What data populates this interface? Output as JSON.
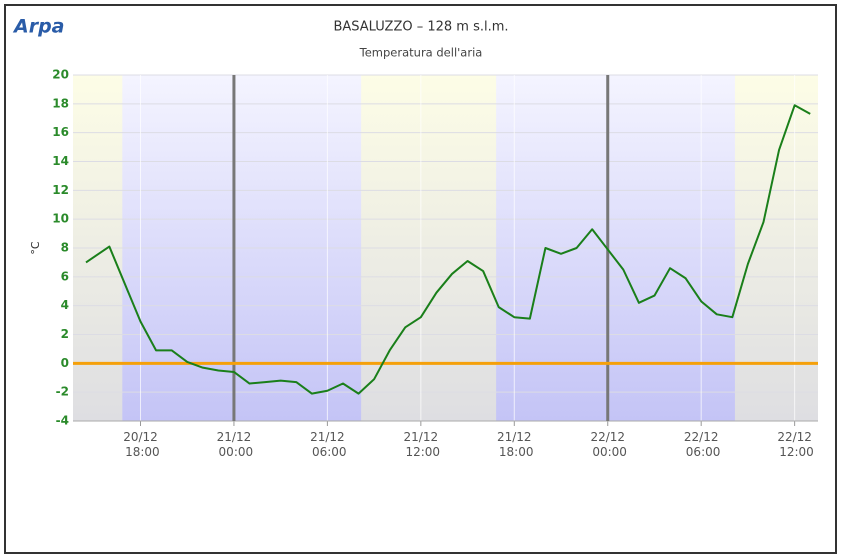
{
  "logo": "Arpa",
  "chart_data": {
    "type": "line",
    "title": "BASALUZZO – 128 m s.l.m.",
    "subtitle": "Temperatura dell'aria",
    "ylabel": "°C",
    "x": [
      "20/12 14:30",
      "20/12 16:00",
      "20/12 18:00",
      "20/12 19:00",
      "20/12 20:00",
      "20/12 21:00",
      "20/12 22:00",
      "20/12 23:00",
      "21/12 00:00",
      "21/12 01:00",
      "21/12 02:00",
      "21/12 03:00",
      "21/12 04:00",
      "21/12 05:00",
      "21/12 06:00",
      "21/12 07:00",
      "21/12 08:00",
      "21/12 09:00",
      "21/12 10:00",
      "21/12 11:00",
      "21/12 12:00",
      "21/12 13:00",
      "21/12 14:00",
      "21/12 15:00",
      "21/12 16:00",
      "21/12 17:00",
      "21/12 18:00",
      "21/12 19:00",
      "21/12 20:00",
      "21/12 21:00",
      "21/12 22:00",
      "21/12 23:00",
      "22/12 00:00",
      "22/12 01:00",
      "22/12 02:00",
      "22/12 03:00",
      "22/12 04:00",
      "22/12 05:00",
      "22/12 06:00",
      "22/12 07:00",
      "22/12 08:00",
      "22/12 09:00",
      "22/12 10:00",
      "22/12 11:00",
      "22/12 12:00",
      "22/12 13:00"
    ],
    "series": [
      {
        "color": "#1a7f1a",
        "values": [
          7.0,
          8.1,
          2.9,
          0.9,
          0.9,
          0.1,
          -0.3,
          -0.5,
          -0.6,
          -1.4,
          -1.3,
          -1.2,
          -1.3,
          -2.1,
          -1.9,
          -1.4,
          -2.1,
          -1.1,
          0.9,
          2.5,
          3.2,
          4.9,
          6.2,
          7.1,
          6.4,
          3.9,
          3.2,
          3.1,
          8.0,
          7.6,
          8.0,
          9.3,
          7.9,
          6.5,
          4.2,
          4.7,
          6.6,
          5.9,
          4.3,
          3.4,
          3.2,
          6.9,
          9.8,
          14.8,
          17.9,
          17.3
        ]
      }
    ],
    "xlim": [
      "20/12 13:40",
      "22/12 13:30"
    ],
    "xticks": [
      "20/12 18:00",
      "21/12 00:00",
      "21/12 06:00",
      "21/12 12:00",
      "21/12 18:00",
      "22/12 00:00",
      "22/12 06:00",
      "22/12 12:00"
    ],
    "ylim": [
      -4,
      20
    ],
    "yticks": [
      -4,
      -2,
      0,
      2,
      4,
      6,
      8,
      10,
      12,
      14,
      16,
      18,
      20
    ],
    "grid": true,
    "night_bands": [
      [
        "20/12 16:50",
        "21/12 08:10"
      ],
      [
        "21/12 16:50",
        "22/12 08:10"
      ]
    ],
    "x_plot_lines": [
      "21/12 00:00",
      "22/12 00:00"
    ],
    "y_plot_line": 0,
    "y_plot_line_color": "#f5a00a",
    "x_plot_line_color": "#777777",
    "tick_color": "#2a8a2a"
  }
}
